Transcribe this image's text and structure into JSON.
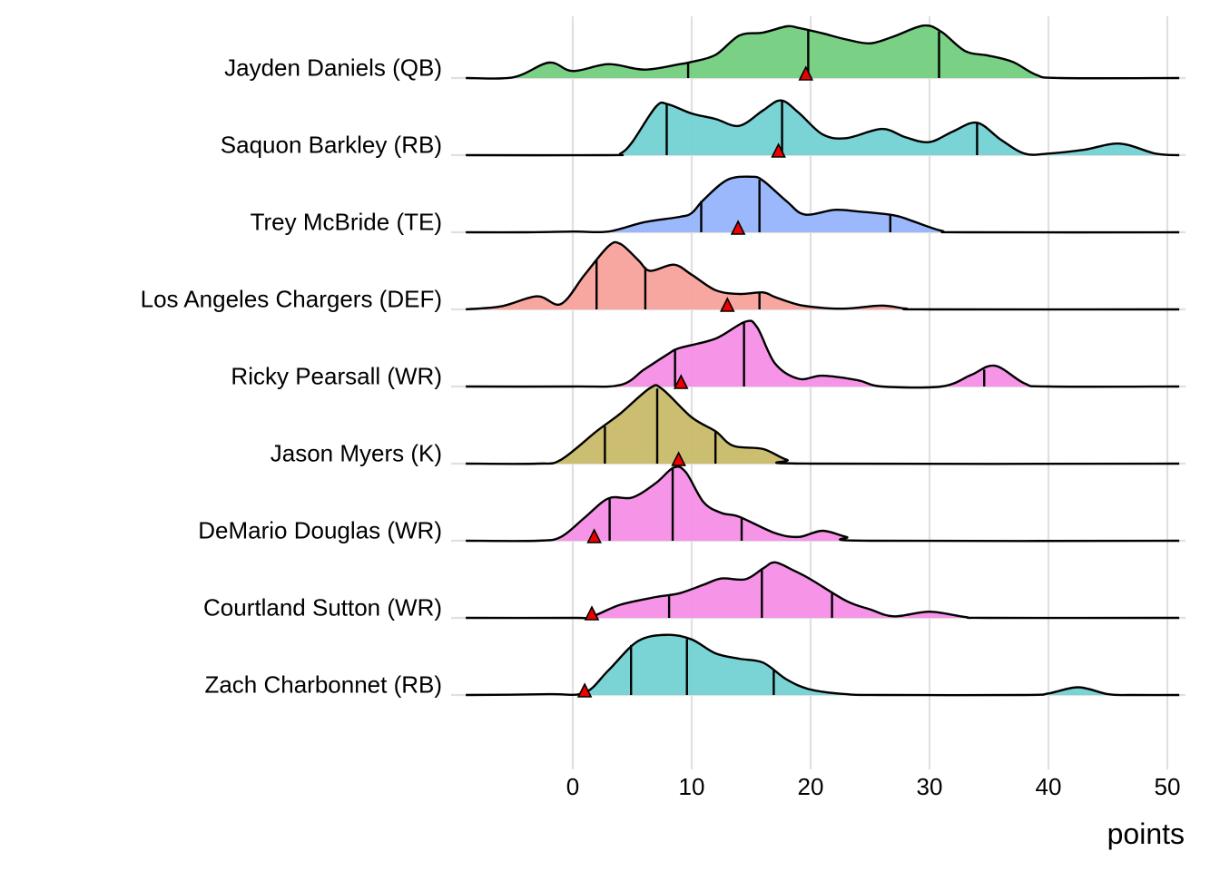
{
  "chart_data": {
    "type": "ridgeline",
    "title": "",
    "xlabel": "points",
    "ylabel": "",
    "xlim": [
      -9,
      51
    ],
    "x_ticks": [
      0,
      10,
      20,
      30,
      40,
      50
    ],
    "x_tick_labels": [
      "0",
      "10",
      "20",
      "30",
      "40",
      "50"
    ],
    "grid": true,
    "marker": "red triangle",
    "marker_color": "#ee0000",
    "series": [
      {
        "name": "Jayden Daniels (QB)",
        "color": "#73cd7e",
        "density": [
          [
            -9,
            0
          ],
          [
            -5,
            0.01
          ],
          [
            -2,
            0.2
          ],
          [
            0,
            0.09
          ],
          [
            3,
            0.18
          ],
          [
            6,
            0.11
          ],
          [
            9,
            0.18
          ],
          [
            10,
            0.21
          ],
          [
            12,
            0.3
          ],
          [
            14,
            0.55
          ],
          [
            16,
            0.59
          ],
          [
            18,
            0.67
          ],
          [
            19,
            0.65
          ],
          [
            21,
            0.58
          ],
          [
            23,
            0.5
          ],
          [
            25,
            0.45
          ],
          [
            27,
            0.54
          ],
          [
            29.5,
            0.68
          ],
          [
            31,
            0.6
          ],
          [
            33,
            0.35
          ],
          [
            35,
            0.29
          ],
          [
            37,
            0.21
          ],
          [
            39,
            0.04
          ],
          [
            41,
            0
          ],
          [
            51,
            0
          ]
        ],
        "quantiles": [
          9.7,
          19.8,
          30.8
        ],
        "actual": 19.6
      },
      {
        "name": "Saquon Barkley (RB)",
        "color": "#73d2d4",
        "density": [
          [
            -9,
            0
          ],
          [
            3,
            0
          ],
          [
            4,
            0.02
          ],
          [
            5,
            0.17
          ],
          [
            7,
            0.63
          ],
          [
            8,
            0.66
          ],
          [
            10,
            0.54
          ],
          [
            12,
            0.47
          ],
          [
            14,
            0.38
          ],
          [
            16,
            0.58
          ],
          [
            17.5,
            0.71
          ],
          [
            19,
            0.55
          ],
          [
            21,
            0.27
          ],
          [
            23,
            0.22
          ],
          [
            26,
            0.34
          ],
          [
            28,
            0.23
          ],
          [
            30,
            0.17
          ],
          [
            32,
            0.31
          ],
          [
            34,
            0.42
          ],
          [
            36,
            0.2
          ],
          [
            38,
            0.02
          ],
          [
            40,
            0.02
          ],
          [
            43,
            0.07
          ],
          [
            46,
            0.15
          ],
          [
            49,
            0.02
          ],
          [
            51,
            0
          ]
        ],
        "quantiles": [
          7.9,
          17.6,
          34.0
        ],
        "actual": 17.3
      },
      {
        "name": "Trey McBride (TE)",
        "color": "#95b4fb",
        "density": [
          [
            -9,
            0
          ],
          [
            -4,
            0
          ],
          [
            0,
            0.01
          ],
          [
            3,
            0.01
          ],
          [
            6,
            0.13
          ],
          [
            9,
            0.2
          ],
          [
            10,
            0.25
          ],
          [
            11,
            0.42
          ],
          [
            13,
            0.68
          ],
          [
            15,
            0.72
          ],
          [
            16,
            0.67
          ],
          [
            18,
            0.4
          ],
          [
            19.5,
            0.23
          ],
          [
            22,
            0.29
          ],
          [
            24,
            0.27
          ],
          [
            27,
            0.22
          ],
          [
            28.5,
            0.15
          ],
          [
            31,
            0.02
          ],
          [
            33,
            0
          ],
          [
            51,
            0
          ]
        ],
        "quantiles": [
          10.8,
          15.7,
          26.7
        ],
        "actual": 13.9
      },
      {
        "name": "Los Angeles Chargers (DEF)",
        "color": "#f7a19b",
        "density": [
          [
            -9,
            0
          ],
          [
            -6,
            0.04
          ],
          [
            -3,
            0.17
          ],
          [
            -1,
            0.07
          ],
          [
            1,
            0.45
          ],
          [
            3,
            0.82
          ],
          [
            4,
            0.85
          ],
          [
            5.5,
            0.64
          ],
          [
            6.5,
            0.5
          ],
          [
            8.5,
            0.58
          ],
          [
            10,
            0.45
          ],
          [
            12,
            0.25
          ],
          [
            14,
            0.2
          ],
          [
            16,
            0.22
          ],
          [
            17,
            0.16
          ],
          [
            19,
            0.06
          ],
          [
            21,
            0.02
          ],
          [
            23,
            0.01
          ],
          [
            26,
            0.05
          ],
          [
            28,
            0.01
          ],
          [
            30,
            0
          ],
          [
            51,
            0
          ]
        ],
        "quantiles": [
          2.0,
          6.1,
          15.7
        ],
        "actual": 13.0
      },
      {
        "name": "Ricky Pearsall (WR)",
        "color": "#f58fe6",
        "density": [
          [
            -9,
            0
          ],
          [
            0,
            0
          ],
          [
            4,
            0.02
          ],
          [
            6,
            0.22
          ],
          [
            8,
            0.42
          ],
          [
            9,
            0.5
          ],
          [
            12,
            0.62
          ],
          [
            14.5,
            0.84
          ],
          [
            15.5,
            0.77
          ],
          [
            17,
            0.3
          ],
          [
            19,
            0.1
          ],
          [
            21,
            0.14
          ],
          [
            24,
            0.08
          ],
          [
            26,
            0
          ],
          [
            31,
            0
          ],
          [
            33.5,
            0.15
          ],
          [
            35.5,
            0.27
          ],
          [
            38,
            0.04
          ],
          [
            40,
            0
          ],
          [
            51,
            0
          ]
        ],
        "quantiles": [
          8.6,
          14.4,
          34.6
        ],
        "actual": 9.1
      },
      {
        "name": "Jason Myers (K)",
        "color": "#c9bb69",
        "density": [
          [
            -9,
            0
          ],
          [
            -3,
            0
          ],
          [
            -1,
            0.05
          ],
          [
            2,
            0.42
          ],
          [
            4,
            0.65
          ],
          [
            6.5,
            0.98
          ],
          [
            7.5,
            0.97
          ],
          [
            10,
            0.6
          ],
          [
            12,
            0.42
          ],
          [
            13.5,
            0.23
          ],
          [
            16,
            0.19
          ],
          [
            18,
            0.05
          ],
          [
            20,
            0
          ],
          [
            51,
            0
          ]
        ],
        "quantiles": [
          2.7,
          7.1,
          12.0
        ],
        "actual": 8.9
      },
      {
        "name": "DeMario Douglas (WR)",
        "color": "#f58fe6",
        "density": [
          [
            -9,
            0
          ],
          [
            -3,
            0
          ],
          [
            -1,
            0.05
          ],
          [
            1,
            0.3
          ],
          [
            3,
            0.55
          ],
          [
            5,
            0.56
          ],
          [
            7,
            0.75
          ],
          [
            8.5,
            0.95
          ],
          [
            9.5,
            0.89
          ],
          [
            11,
            0.5
          ],
          [
            12.5,
            0.36
          ],
          [
            14,
            0.31
          ],
          [
            17,
            0.1
          ],
          [
            19,
            0.05
          ],
          [
            21,
            0.13
          ],
          [
            23,
            0.05
          ],
          [
            25,
            0
          ],
          [
            51,
            0
          ]
        ],
        "quantiles": [
          3.1,
          8.4,
          14.2
        ],
        "actual": 1.8
      },
      {
        "name": "Courtland Sutton (WR)",
        "color": "#f58fe6",
        "density": [
          [
            -9,
            0
          ],
          [
            0,
            0
          ],
          [
            1.5,
            0.01
          ],
          [
            4,
            0.17
          ],
          [
            7,
            0.27
          ],
          [
            9,
            0.32
          ],
          [
            11,
            0.43
          ],
          [
            12.5,
            0.51
          ],
          [
            14.5,
            0.5
          ],
          [
            16,
            0.64
          ],
          [
            17,
            0.72
          ],
          [
            18.5,
            0.62
          ],
          [
            20,
            0.5
          ],
          [
            23,
            0.22
          ],
          [
            25,
            0.11
          ],
          [
            27,
            0.02
          ],
          [
            30,
            0.08
          ],
          [
            33,
            0.01
          ],
          [
            35,
            0
          ],
          [
            51,
            0
          ]
        ],
        "quantiles": [
          8.1,
          15.9,
          21.8
        ],
        "actual": 1.6
      },
      {
        "name": "Zach Charbonnet (RB)",
        "color": "#73d2d4",
        "density": [
          [
            -9,
            0
          ],
          [
            -2,
            0.01
          ],
          [
            1,
            0.03
          ],
          [
            3,
            0.32
          ],
          [
            5.5,
            0.7
          ],
          [
            8,
            0.78
          ],
          [
            10,
            0.72
          ],
          [
            12,
            0.54
          ],
          [
            14,
            0.47
          ],
          [
            16,
            0.42
          ],
          [
            18,
            0.2
          ],
          [
            20,
            0.07
          ],
          [
            23,
            0.01
          ],
          [
            26,
            0
          ],
          [
            38,
            0
          ],
          [
            40,
            0.02
          ],
          [
            42.5,
            0.1
          ],
          [
            45,
            0.01
          ],
          [
            47,
            0
          ],
          [
            51,
            0
          ]
        ],
        "quantiles": [
          4.9,
          9.6,
          16.9
        ],
        "actual": 1.0
      }
    ]
  }
}
